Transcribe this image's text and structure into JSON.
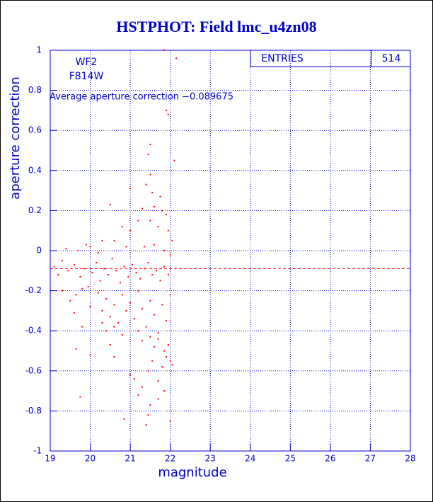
{
  "chart_data": {
    "type": "scatter",
    "title": "HSTPHOT: Field lmc_u4zn08",
    "x_label": "magnitude",
    "y_label": "aperture correction",
    "annotations": [
      "WF2",
      "F814W"
    ],
    "average_label": "Average aperture correction −0.089675",
    "average": -0.089675,
    "stats_label": "ENTRIES",
    "stats_value": "514",
    "color": "#ff0000",
    "grid": true,
    "xlim": [
      19,
      28
    ],
    "ylim": [
      -1,
      1
    ],
    "xticks": [
      19,
      20,
      21,
      22,
      23,
      24,
      25,
      26,
      27,
      28
    ],
    "yticks": [
      -1,
      -0.8,
      -0.6,
      -0.4,
      -0.2,
      0,
      0.2,
      0.4,
      0.6,
      0.8,
      1
    ],
    "x": [
      21.85,
      22.15,
      21.9,
      21.95,
      22.1,
      21.5,
      21.45,
      21.0,
      21.5,
      21.4,
      21.55,
      21.75,
      20.5,
      21.3,
      21.6,
      21.8,
      21.9,
      21.2,
      20.8,
      21.0,
      21.5,
      21.7,
      21.95,
      22.05,
      20.3,
      20.6,
      20.9,
      21.35,
      21.6,
      21.85,
      22.0,
      19.4,
      19.7,
      20.0,
      20.2,
      19.9,
      19.1,
      19.2,
      19.3,
      19.45,
      19.6,
      19.75,
      19.85,
      19.95,
      20.05,
      20.15,
      20.25,
      20.35,
      20.45,
      20.55,
      20.65,
      20.75,
      20.85,
      20.95,
      21.05,
      21.15,
      21.25,
      21.35,
      21.45,
      21.55,
      21.65,
      21.75,
      21.85,
      21.95,
      19.3,
      19.5,
      19.65,
      19.8,
      20.0,
      20.2,
      20.3,
      20.4,
      20.5,
      20.6,
      20.7,
      20.8,
      20.9,
      21.0,
      21.1,
      21.2,
      21.3,
      21.4,
      21.5,
      21.6,
      21.7,
      21.8,
      21.9,
      22.0,
      19.6,
      19.8,
      20.3,
      20.4,
      20.6,
      20.8,
      21.2,
      21.3,
      21.5,
      21.6,
      21.7,
      21.85,
      21.95,
      22.0,
      20.5,
      20.6,
      21.55,
      21.45,
      21.8,
      21.9,
      22.05,
      19.65,
      20.0,
      21.0,
      21.1,
      21.3,
      21.7,
      21.85,
      20.85,
      21.2,
      21.45,
      21.5,
      21.7,
      21.4,
      19.75,
      22.0
    ],
    "values": [
      1.0,
      0.96,
      0.7,
      0.68,
      0.45,
      0.53,
      0.48,
      0.31,
      0.38,
      0.33,
      0.29,
      0.27,
      0.23,
      0.21,
      0.22,
      0.2,
      0.18,
      0.15,
      0.12,
      0.1,
      0.15,
      0.12,
      0.1,
      0.05,
      0.05,
      0.05,
      0.02,
      0.02,
      0.03,
      0,
      -0.02,
      0.01,
      0,
      0.02,
      -0.01,
      0.03,
      -0.08,
      -0.12,
      -0.05,
      -0.1,
      -0.07,
      -0.13,
      -0.09,
      -0.18,
      -0.11,
      -0.06,
      -0.15,
      -0.09,
      -0.12,
      -0.04,
      -0.1,
      -0.16,
      -0.08,
      -0.13,
      -0.07,
      -0.11,
      -0.14,
      -0.09,
      -0.06,
      -0.12,
      -0.1,
      -0.15,
      -0.08,
      -0.12,
      -0.2,
      -0.25,
      -0.22,
      -0.19,
      -0.28,
      -0.21,
      -0.3,
      -0.24,
      -0.33,
      -0.27,
      -0.36,
      -0.22,
      -0.3,
      -0.26,
      -0.34,
      -0.2,
      -0.29,
      -0.38,
      -0.25,
      -0.32,
      -0.41,
      -0.27,
      -0.35,
      -0.22,
      -0.31,
      -0.38,
      -0.36,
      -0.4,
      -0.38,
      -0.42,
      -0.4,
      -0.45,
      -0.43,
      -0.48,
      -0.44,
      -0.5,
      -0.47,
      -0.55,
      -0.47,
      -0.53,
      -0.55,
      -0.6,
      -0.58,
      -0.53,
      -0.57,
      -0.49,
      -0.52,
      -0.62,
      -0.64,
      -0.68,
      -0.65,
      -0.7,
      -0.84,
      -0.72,
      -0.82,
      -0.77,
      -0.74,
      -0.87,
      -0.73,
      -0.85
    ]
  }
}
